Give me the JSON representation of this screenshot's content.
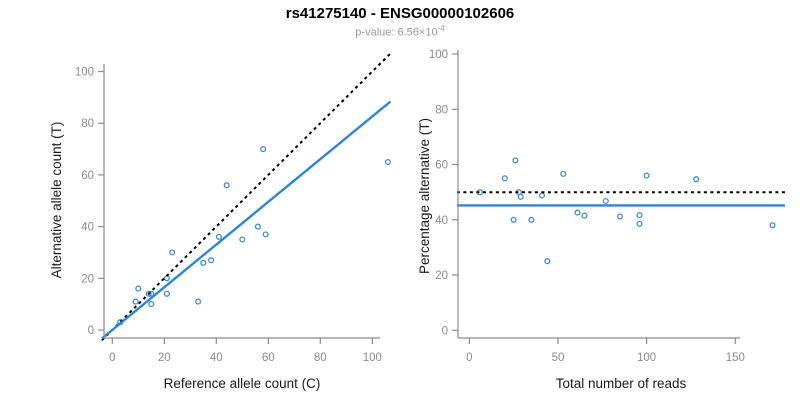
{
  "header": {
    "title": "rs41275140 - ENSG00000102606",
    "subtitle_prefix": "p-value: 6.56×10",
    "subtitle_exponent": "-4"
  },
  "colors": {
    "background": "#ffffff",
    "point": "#3D8CD6",
    "fit_line": "#2B86DB",
    "dashed_line": "#000000",
    "axis": "#8C8C8C",
    "tick_label": "#8C8C8C",
    "axis_title": "#1A1A1A",
    "title": "#000000",
    "subtitle": "#999999"
  },
  "chart_data": [
    {
      "type": "scatter",
      "panel": "left",
      "xlabel": "Reference allele count (C)",
      "ylabel": "Alternative allele count (T)",
      "xlim": [
        0,
        100
      ],
      "ylim": [
        0,
        100
      ],
      "xticks": [
        0,
        20,
        40,
        60,
        80,
        100
      ],
      "yticks": [
        0,
        20,
        40,
        60,
        80,
        100
      ],
      "grid": false,
      "legend": "none",
      "points": [
        [
          3,
          3
        ],
        [
          9,
          11
        ],
        [
          10,
          16
        ],
        [
          14,
          14
        ],
        [
          15,
          10
        ],
        [
          15,
          14
        ],
        [
          21,
          14
        ],
        [
          21,
          20
        ],
        [
          23,
          30
        ],
        [
          33,
          11
        ],
        [
          35,
          26
        ],
        [
          38,
          27
        ],
        [
          41,
          36
        ],
        [
          44,
          56
        ],
        [
          50,
          35
        ],
        [
          56,
          40
        ],
        [
          58,
          70
        ],
        [
          59,
          37
        ],
        [
          106,
          65
        ]
      ],
      "lines": [
        {
          "name": "identity-line",
          "description": "y equals x reference",
          "dashed": true,
          "slope": 1,
          "intercept": 0,
          "color": "#000000",
          "width": 2
        },
        {
          "name": "fit-line",
          "description": "fitted allelic ratio",
          "dashed": false,
          "slope": 0.826,
          "intercept": 0,
          "color": "#2B86DB",
          "width": 2.4
        }
      ]
    },
    {
      "type": "scatter",
      "panel": "right",
      "xlabel": "Total number of reads",
      "ylabel": "Percentage alternative (T)",
      "xlim": [
        0,
        175
      ],
      "ylim": [
        0,
        100
      ],
      "xticks": [
        0,
        50,
        100,
        150
      ],
      "yticks": [
        0,
        20,
        40,
        60,
        80,
        100
      ],
      "grid": false,
      "legend": "none",
      "points": [
        [
          6,
          50
        ],
        [
          20,
          55
        ],
        [
          25,
          40
        ],
        [
          26,
          61.5
        ],
        [
          28,
          50
        ],
        [
          29,
          48.3
        ],
        [
          35,
          40
        ],
        [
          41,
          48.8
        ],
        [
          44,
          25
        ],
        [
          53,
          56.6
        ],
        [
          61,
          42.6
        ],
        [
          65,
          41.5
        ],
        [
          77,
          46.8
        ],
        [
          85,
          41.2
        ],
        [
          96,
          38.5
        ],
        [
          96,
          41.7
        ],
        [
          100,
          56
        ],
        [
          128,
          54.7
        ],
        [
          171,
          38
        ]
      ],
      "lines": [
        {
          "name": "reference-line",
          "description": "50% reference",
          "dashed": true,
          "y": 50,
          "color": "#000000",
          "width": 2
        },
        {
          "name": "mean-line",
          "description": "mean alternative percentage",
          "dashed": false,
          "y": 45.2,
          "color": "#2B86DB",
          "width": 2.4
        }
      ]
    }
  ]
}
